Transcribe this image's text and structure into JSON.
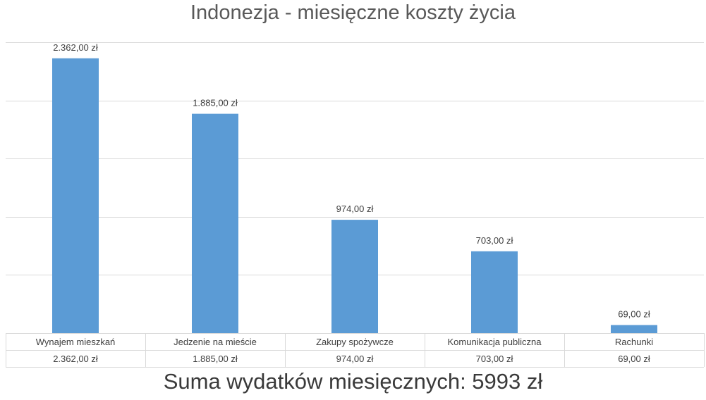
{
  "chart_data": {
    "type": "bar",
    "title": "Indonezja - miesięczne koszty życia",
    "categories": [
      "Wynajem mieszkań",
      "Jedzenie na mieście",
      "Zakupy spożywcze",
      "Komunikacja publiczna",
      "Rachunki"
    ],
    "values": [
      2362,
      1885,
      974,
      703,
      69
    ],
    "value_labels": [
      "2.362,00 zł",
      "1.885,00 zł",
      "974,00 zł",
      "703,00 zł",
      "69,00 zł"
    ],
    "ylim": [
      0,
      2500
    ],
    "grid": true,
    "bar_color": "#5b9bd5",
    "data_table": true
  },
  "summary": "Suma wydatków miesięcznych: 5993 zł"
}
